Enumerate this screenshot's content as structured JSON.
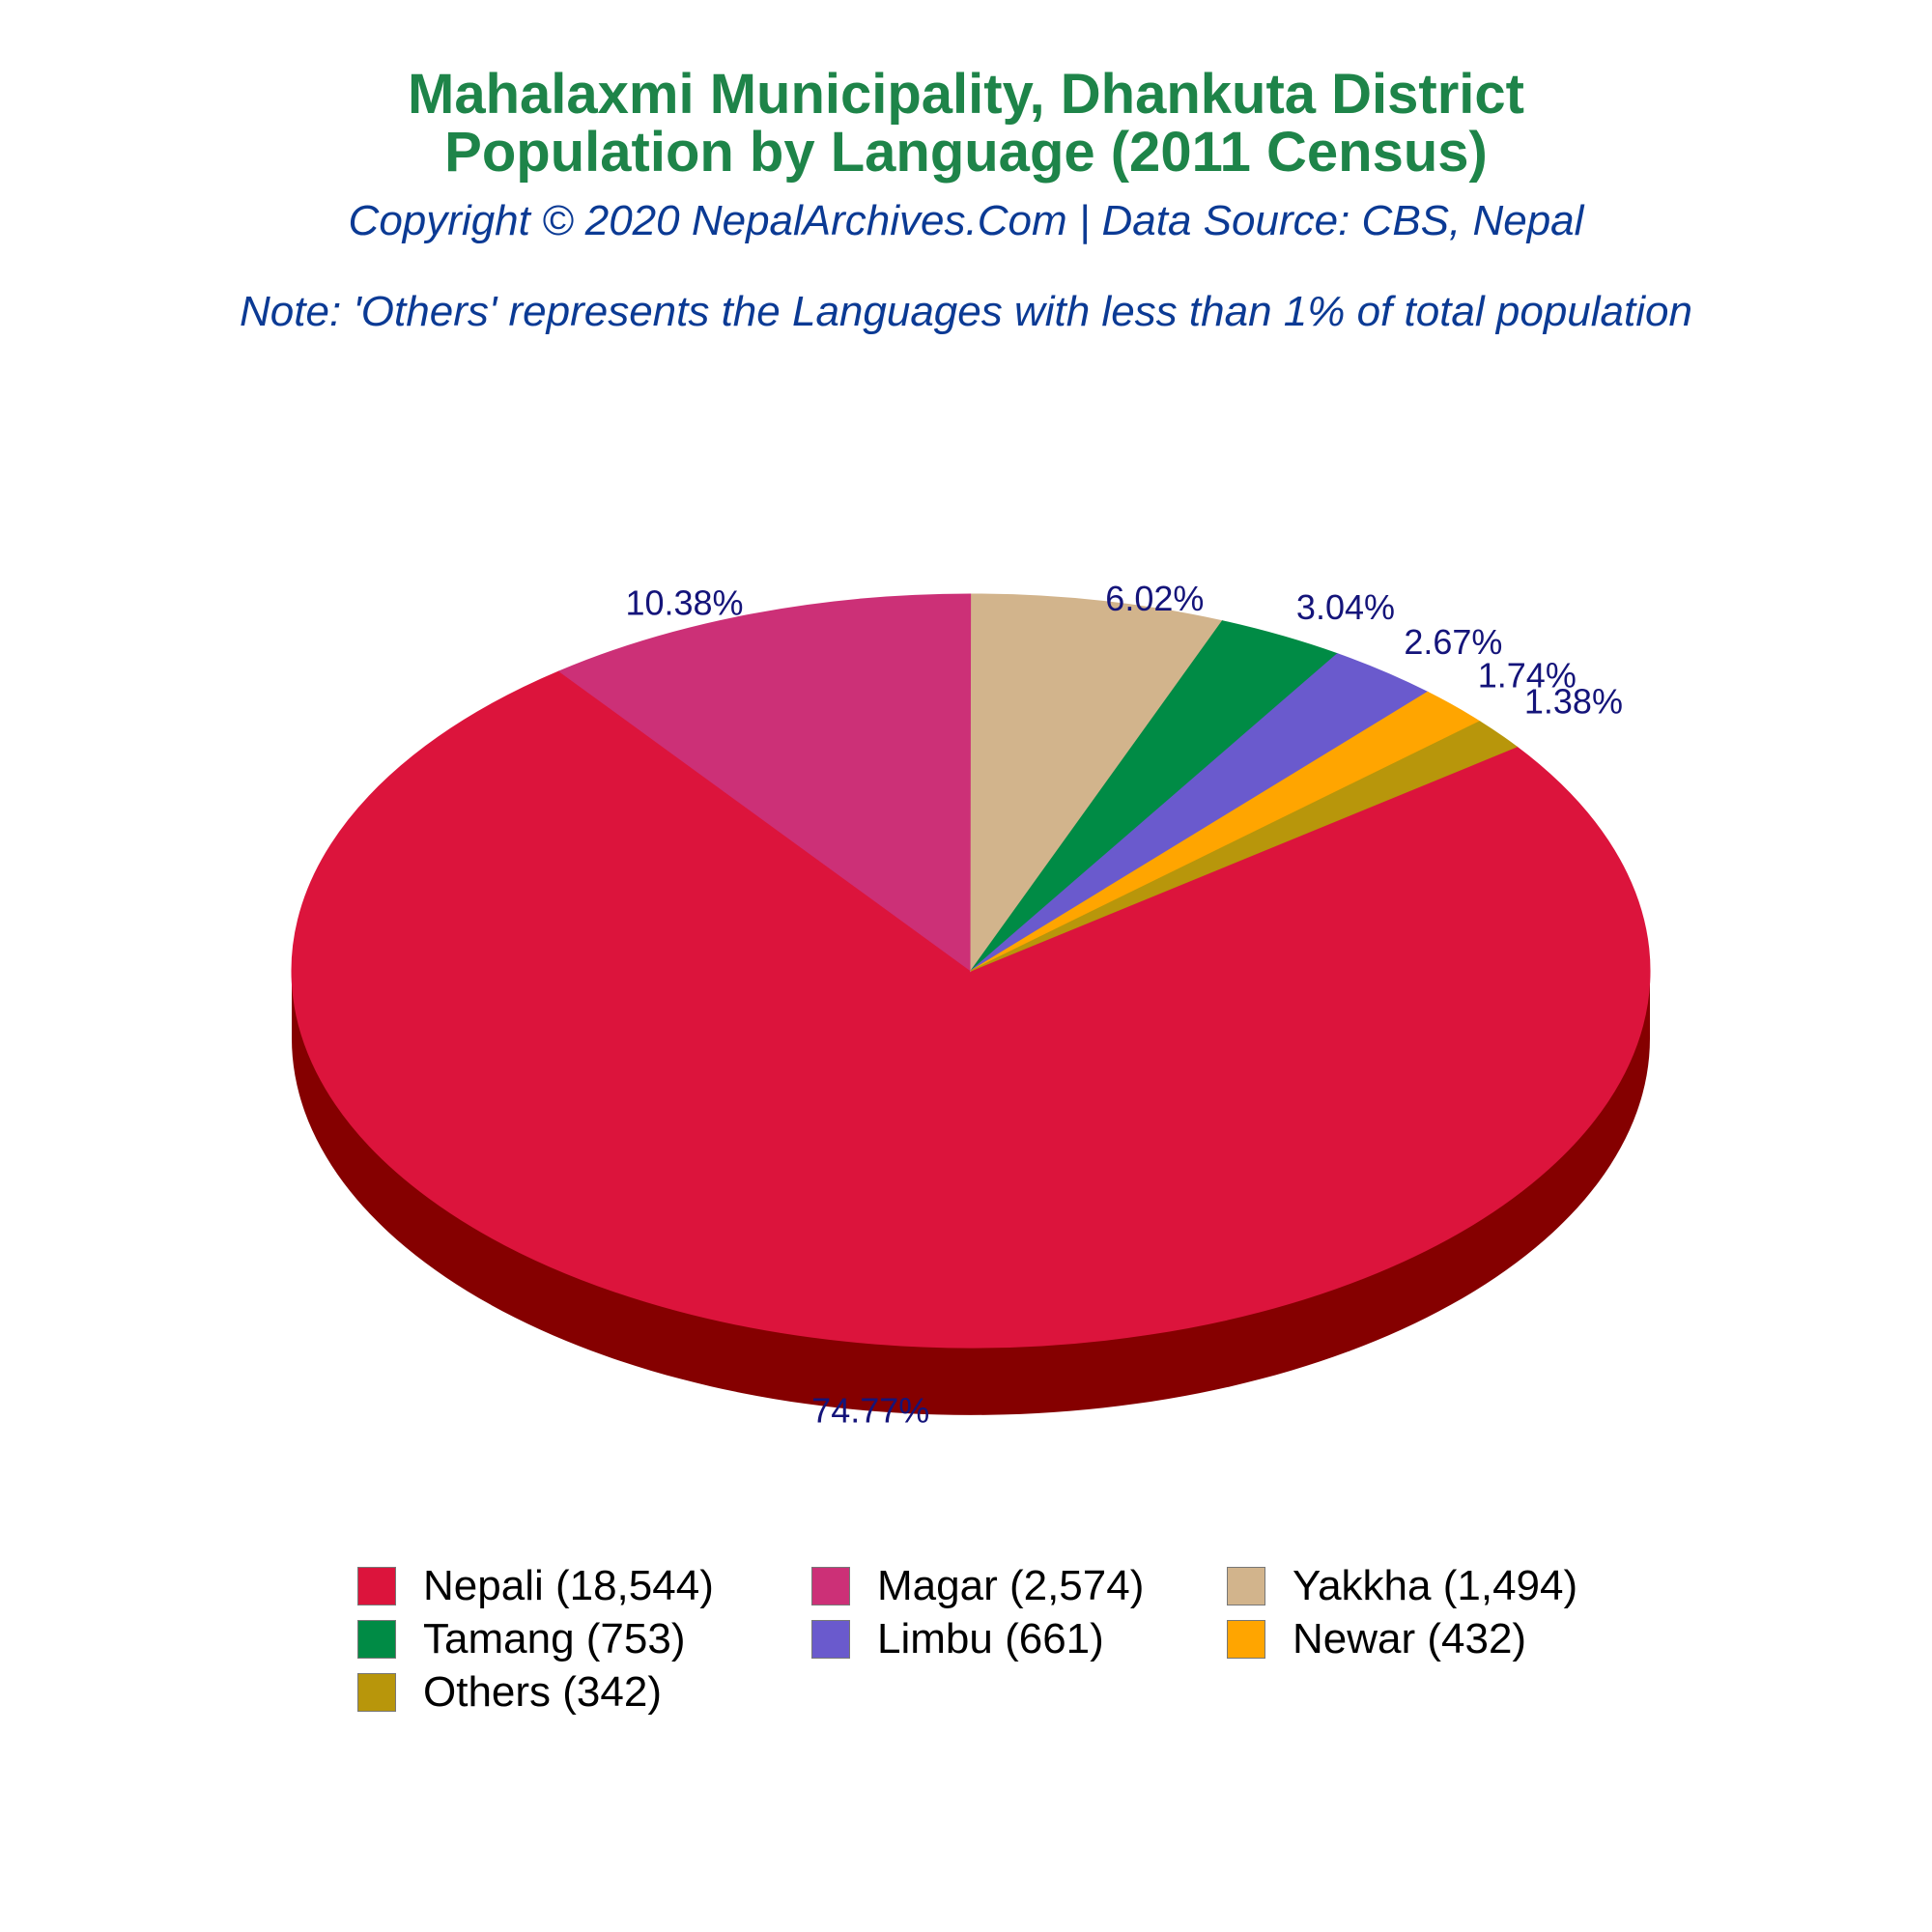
{
  "header": {
    "title_line1": "Mahalaxmi Municipality, Dhankuta District",
    "title_line2": "Population by Language (2011 Census)",
    "copyright": "Copyright © 2020 NepalArchives.Com | Data Source: CBS, Nepal",
    "note": "Note: 'Others' represents the Languages with less than 1% of total population"
  },
  "chart_data": {
    "type": "pie",
    "style": "3d",
    "title": "Mahalaxmi Municipality, Dhankuta District Population by Language (2011 Census)",
    "categories": [
      "Nepali",
      "Magar",
      "Yakkha",
      "Tamang",
      "Limbu",
      "Newar",
      "Others"
    ],
    "values": [
      18544,
      2574,
      1494,
      753,
      661,
      432,
      342
    ],
    "percent_labels": [
      "74.77%",
      "10.38%",
      "6.02%",
      "3.04%",
      "2.67%",
      "1.74%",
      "1.38%"
    ],
    "legend_labels": [
      "Nepali (18,544)",
      "Magar (2,574)",
      "Yakkha (1,494)",
      "Tamang (753)",
      "Limbu (661)",
      "Newar (432)",
      "Others (342)"
    ],
    "colors": [
      "#dc143c",
      "#cc3077",
      "#d2b48c",
      "#008b45",
      "#6a5acd",
      "#ffa500",
      "#b8960b"
    ],
    "side_colors": [
      "#850000",
      "#700020",
      "#7a5b30",
      "#004d26",
      "#3a2f7a",
      "#9a6200",
      "#6e5a06"
    ],
    "legend_position": "bottom"
  }
}
